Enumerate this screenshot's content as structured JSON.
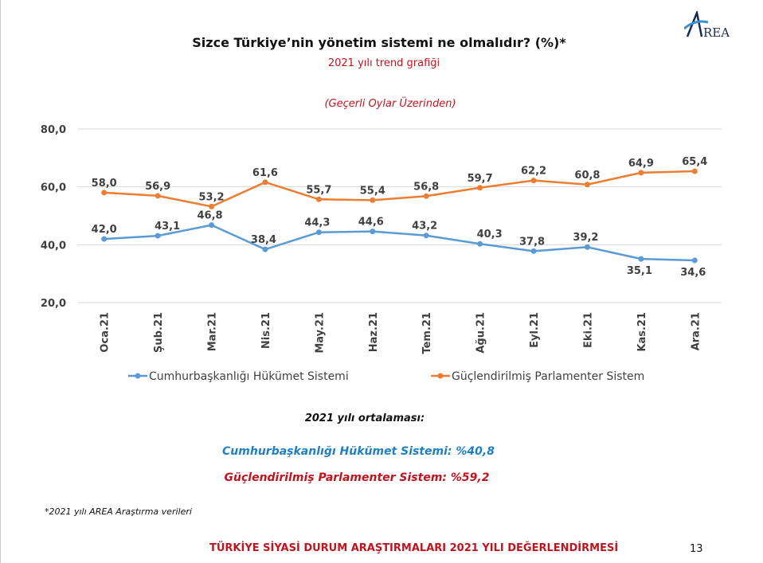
{
  "header": {
    "title": "Sizce Türkiye’nin yönetim sistemi ne olmalıdır? (%)*",
    "subtitle": "2021 yılı trend grafiği",
    "note": "(Geçerli Oylar Üzerinden)",
    "logo_text": "AREA"
  },
  "chart_data": {
    "type": "line",
    "categories": [
      "Oca.21",
      "Şub.21",
      "Mar.21",
      "Nis.21",
      "May.21",
      "Haz.21",
      "Tem.21",
      "Ağu.21",
      "Eyl.21",
      "Eki.21",
      "Kas.21",
      "Ara.21"
    ],
    "y_ticks": [
      "20,0",
      "40,0",
      "60,0",
      "80,0"
    ],
    "ylim": [
      20,
      80
    ],
    "grid": true,
    "legend": "bottom",
    "series": [
      {
        "name": "Cumhurbaşkanlığı Hükümet Sistemi",
        "color": "#5b9bd5",
        "values": [
          42.0,
          43.1,
          46.8,
          38.4,
          44.3,
          44.6,
          43.2,
          40.3,
          37.8,
          39.2,
          35.1,
          34.6
        ],
        "labels": [
          "42,0",
          "43,1",
          "46,8",
          "38,4",
          "44,3",
          "44,6",
          "43,2",
          "40,3",
          "37,8",
          "39,2",
          "35,1",
          "34,6"
        ]
      },
      {
        "name": "Güçlendirilmiş Parlamenter Sistem",
        "color": "#ed7d31",
        "values": [
          58.0,
          56.9,
          53.2,
          61.6,
          55.7,
          55.4,
          56.8,
          59.7,
          62.2,
          60.8,
          64.9,
          65.4
        ],
        "labels": [
          "58,0",
          "56,9",
          "53,2",
          "61,6",
          "55,7",
          "55,4",
          "56,8",
          "59,7",
          "62,2",
          "60,8",
          "64,9",
          "65,4"
        ]
      }
    ]
  },
  "averages": {
    "title": "2021 yılı ortalaması:",
    "line1": "Cumhurbaşkanlığı Hükümet Sistemi: %40,8",
    "line2": "Güçlendirilmiş Parlamenter Sistem: %59,2"
  },
  "footnote": "*2021 yılı AREA Araştırma verileri",
  "footer": "TÜRKİYE SİYASİ DURUM ARAŞTIRMALARI 2021 YILI DEĞERLENDİRMESİ",
  "page_number": "13"
}
